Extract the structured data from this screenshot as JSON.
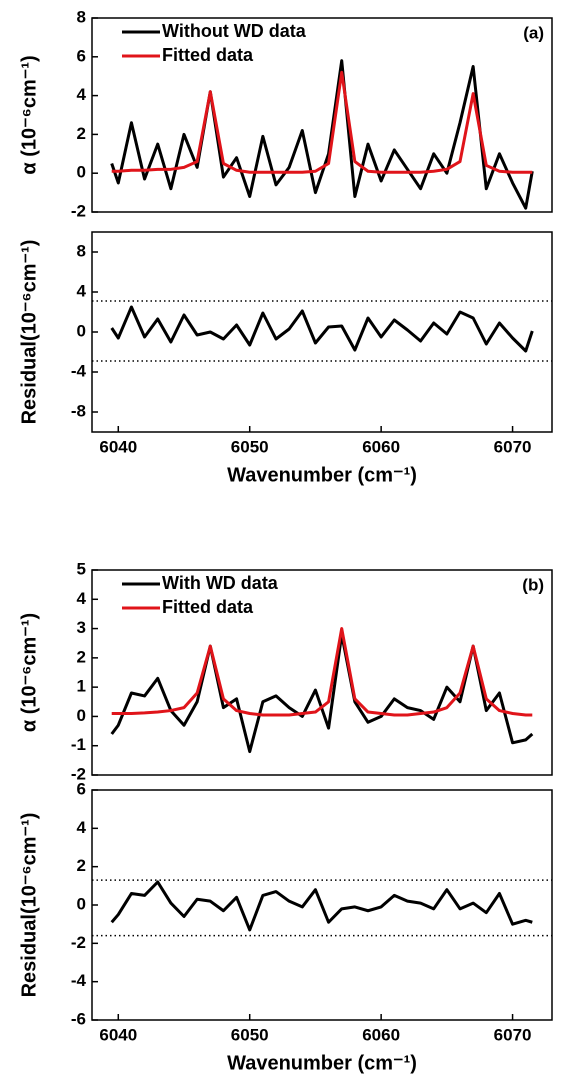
{
  "chart_data": [
    {
      "type": "line",
      "ylabel": "α (10⁻⁶cm⁻¹)",
      "annotation": "(a)",
      "legend": "top-left",
      "x": [
        6039.5,
        6040,
        6041,
        6042,
        6043,
        6044,
        6045,
        6046,
        6047,
        6048,
        6049,
        6050,
        6051,
        6052,
        6053,
        6054,
        6055,
        6056,
        6057,
        6058,
        6059,
        6060,
        6061,
        6062,
        6063,
        6064,
        6065,
        6066,
        6067,
        6068,
        6069,
        6070,
        6071,
        6071.5
      ],
      "xlim": [
        6038,
        6073
      ],
      "ylim": [
        -2,
        8
      ],
      "yticks": [
        -2,
        0,
        2,
        4,
        6,
        8
      ],
      "series": [
        {
          "name": "Without WD data",
          "color": "#000000",
          "values": [
            0.5,
            -0.5,
            2.6,
            -0.3,
            1.5,
            -0.8,
            2.0,
            0.3,
            4.2,
            -0.2,
            0.8,
            -1.2,
            1.9,
            -0.6,
            0.3,
            2.2,
            -1.0,
            1.0,
            5.8,
            -1.2,
            1.5,
            -0.4,
            1.2,
            0.2,
            -0.8,
            1.0,
            0.0,
            2.6,
            5.5,
            -0.8,
            1.0,
            -0.5,
            -1.8,
            0.1
          ]
        },
        {
          "name": "Fitted data",
          "color": "#e0141a",
          "values": [
            0.1,
            0.1,
            0.15,
            0.15,
            0.2,
            0.2,
            0.3,
            0.6,
            4.2,
            0.5,
            0.15,
            0.05,
            0.05,
            0.05,
            0.05,
            0.05,
            0.1,
            0.5,
            5.2,
            0.6,
            0.1,
            0.05,
            0.05,
            0.05,
            0.05,
            0.1,
            0.2,
            0.6,
            4.1,
            0.4,
            0.1,
            0.05,
            0.05,
            0.05
          ]
        }
      ]
    },
    {
      "type": "line",
      "ylabel": "Residual(10⁻⁶cm⁻¹)",
      "xlabel": "Wavenumber (cm⁻¹)",
      "x": [
        6039.5,
        6040,
        6041,
        6042,
        6043,
        6044,
        6045,
        6046,
        6047,
        6048,
        6049,
        6050,
        6051,
        6052,
        6053,
        6054,
        6055,
        6056,
        6057,
        6058,
        6059,
        6060,
        6061,
        6062,
        6063,
        6064,
        6065,
        6066,
        6067,
        6068,
        6069,
        6070,
        6071,
        6071.5
      ],
      "xlim": [
        6038,
        6073
      ],
      "xticks": [
        6040,
        6050,
        6060,
        6070
      ],
      "ylim": [
        -10,
        10
      ],
      "yticks": [
        -8,
        -4,
        0,
        4,
        8
      ],
      "hlines": [
        3.1,
        -2.9
      ],
      "series": [
        {
          "color": "#000000",
          "values": [
            0.4,
            -0.6,
            2.5,
            -0.5,
            1.3,
            -1.0,
            1.7,
            -0.3,
            0,
            -0.7,
            0.7,
            -1.3,
            1.9,
            -0.7,
            0.3,
            2.1,
            -1.1,
            0.5,
            0.6,
            -1.8,
            1.4,
            -0.5,
            1.2,
            0.2,
            -0.9,
            0.9,
            -0.2,
            2.0,
            1.4,
            -1.2,
            0.9,
            -0.6,
            -1.9,
            0.1
          ]
        }
      ]
    },
    {
      "type": "line",
      "ylabel": "α (10⁻⁶cm⁻¹)",
      "annotation": "(b)",
      "legend": "top-left",
      "x": [
        6039.5,
        6040,
        6041,
        6042,
        6043,
        6044,
        6045,
        6046,
        6047,
        6048,
        6049,
        6050,
        6051,
        6052,
        6053,
        6054,
        6055,
        6056,
        6057,
        6058,
        6059,
        6060,
        6061,
        6062,
        6063,
        6064,
        6065,
        6066,
        6067,
        6068,
        6069,
        6070,
        6071,
        6071.5
      ],
      "xlim": [
        6038,
        6073
      ],
      "ylim": [
        -2,
        5
      ],
      "yticks": [
        -2,
        -1,
        0,
        1,
        2,
        3,
        4,
        5
      ],
      "series": [
        {
          "name": "With WD data",
          "color": "#000000",
          "values": [
            -0.6,
            -0.3,
            0.8,
            0.7,
            1.3,
            0.2,
            -0.3,
            0.5,
            2.4,
            0.3,
            0.6,
            -1.2,
            0.5,
            0.7,
            0.3,
            0.0,
            0.9,
            -0.4,
            2.8,
            0.5,
            -0.2,
            0.0,
            0.6,
            0.3,
            0.2,
            -0.1,
            1.0,
            0.5,
            2.4,
            0.2,
            0.8,
            -0.9,
            -0.8,
            -0.6
          ]
        },
        {
          "name": "Fitted data",
          "color": "#e0141a",
          "values": [
            0.1,
            0.1,
            0.1,
            0.12,
            0.15,
            0.2,
            0.3,
            0.8,
            2.4,
            0.6,
            0.2,
            0.1,
            0.05,
            0.05,
            0.05,
            0.1,
            0.15,
            0.5,
            3.0,
            0.6,
            0.15,
            0.1,
            0.05,
            0.05,
            0.1,
            0.15,
            0.3,
            0.8,
            2.4,
            0.6,
            0.2,
            0.1,
            0.05,
            0.05
          ]
        }
      ]
    },
    {
      "type": "line",
      "ylabel": "Residual(10⁻⁶cm⁻¹)",
      "xlabel": "Wavenumber (cm⁻¹)",
      "x": [
        6039.5,
        6040,
        6041,
        6042,
        6043,
        6044,
        6045,
        6046,
        6047,
        6048,
        6049,
        6050,
        6051,
        6052,
        6053,
        6054,
        6055,
        6056,
        6057,
        6058,
        6059,
        6060,
        6061,
        6062,
        6063,
        6064,
        6065,
        6066,
        6067,
        6068,
        6069,
        6070,
        6071,
        6071.5
      ],
      "xlim": [
        6038,
        6073
      ],
      "xticks": [
        6040,
        6050,
        6060,
        6070
      ],
      "ylim": [
        -6,
        6
      ],
      "yticks": [
        -6,
        -4,
        -2,
        0,
        2,
        4,
        6
      ],
      "hlines": [
        1.3,
        -1.6
      ],
      "series": [
        {
          "color": "#000000",
          "values": [
            -0.9,
            -0.5,
            0.6,
            0.5,
            1.2,
            0.1,
            -0.6,
            0.3,
            0.2,
            -0.3,
            0.4,
            -1.3,
            0.5,
            0.7,
            0.2,
            -0.1,
            0.8,
            -0.9,
            -0.2,
            -0.1,
            -0.3,
            -0.1,
            0.5,
            0.2,
            0.1,
            -0.2,
            0.8,
            -0.2,
            0.1,
            -0.4,
            0.6,
            -1.0,
            -0.8,
            -0.9
          ]
        }
      ]
    }
  ]
}
